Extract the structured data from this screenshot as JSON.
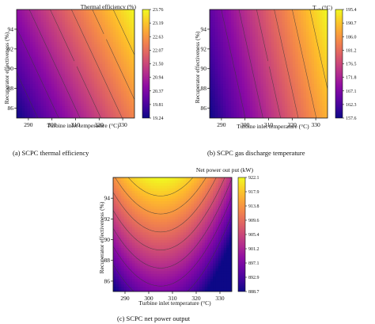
{
  "chart_data": [
    {
      "type": "heatmap",
      "caption": "(a) SCPC thermal efficiency",
      "title": "Thermal efficiency (%)",
      "xlabel": "Turbine inlet temperature (°C)",
      "ylabel": "Recuperator effectiveness (%)",
      "xlim": [
        285,
        335
      ],
      "ylim": [
        85,
        96
      ],
      "xticks": [
        "290",
        "300",
        "310",
        "320",
        "330"
      ],
      "yticks": [
        "86",
        "88",
        "90",
        "92",
        "94"
      ],
      "colorbar_ticks": [
        "23.76",
        "23.19",
        "22.63",
        "22.07",
        "21.50",
        "20.94",
        "20.37",
        "19.81",
        "19.24"
      ],
      "colorbar_range": [
        19.24,
        23.76
      ],
      "colormap": "plasma",
      "field": {
        "model": "linear",
        "corner_values": {
          "x285_y85": 19.24,
          "x335_y85": 22.4,
          "x285_y96": 20.6,
          "x335_y96": 23.76
        }
      },
      "contour_levels": [
        19.81,
        20.37,
        20.94,
        21.5,
        22.07,
        22.63,
        23.19
      ]
    },
    {
      "type": "heatmap",
      "caption": "(b) SCPC  gas discharge temperature",
      "title": "T",
      "title_subscript": "g2",
      "title_suffix": " (°C)",
      "xlabel": "Turbine inlet temperature (°C)",
      "ylabel": "Recuperator effectiveness (%)",
      "xlim": [
        285,
        335
      ],
      "ylim": [
        85,
        96
      ],
      "xticks": [
        "290",
        "300",
        "310",
        "320",
        "330"
      ],
      "yticks": [
        "86",
        "88",
        "90",
        "92",
        "94"
      ],
      "colorbar_ticks": [
        "195.4",
        "190.7",
        "186.0",
        "181.2",
        "176.5",
        "171.8",
        "167.1",
        "162.3",
        "157.6"
      ],
      "colorbar_range": [
        157.6,
        195.4
      ],
      "colormap": "plasma",
      "field": {
        "model": "linear",
        "corner_values": {
          "x285_y85": 157.6,
          "x335_y85": 189.0,
          "x285_y96": 164.0,
          "x335_y96": 195.4
        }
      },
      "contour_levels": [
        167.1,
        171.8,
        176.5,
        181.2,
        186.0,
        190.7
      ]
    },
    {
      "type": "heatmap",
      "caption": "(c) SCPC net power output",
      "title": "Net power out put (kW)",
      "xlabel": "Turbine inlet temperature (°C)",
      "ylabel": "Recuperator effectiveness (%)",
      "xlim": [
        285,
        335
      ],
      "ylim": [
        85,
        96
      ],
      "xticks": [
        "290",
        "300",
        "310",
        "320",
        "330"
      ],
      "yticks": [
        "86",
        "88",
        "90",
        "92",
        "94"
      ],
      "colorbar_ticks": [
        "922.1",
        "917.9",
        "913.8",
        "909.6",
        "905.4",
        "901.2",
        "897.1",
        "892.9",
        "888.7"
      ],
      "colorbar_range": [
        888.7,
        922.1
      ],
      "colormap": "plasma",
      "field": {
        "model": "quadratic",
        "peak_x": 305,
        "peak_value_at_top": 922.1,
        "y_slope": 2.3,
        "x_curvature": 0.022
      },
      "contour_levels": [
        894,
        898,
        902,
        906,
        910,
        914,
        918
      ]
    }
  ]
}
